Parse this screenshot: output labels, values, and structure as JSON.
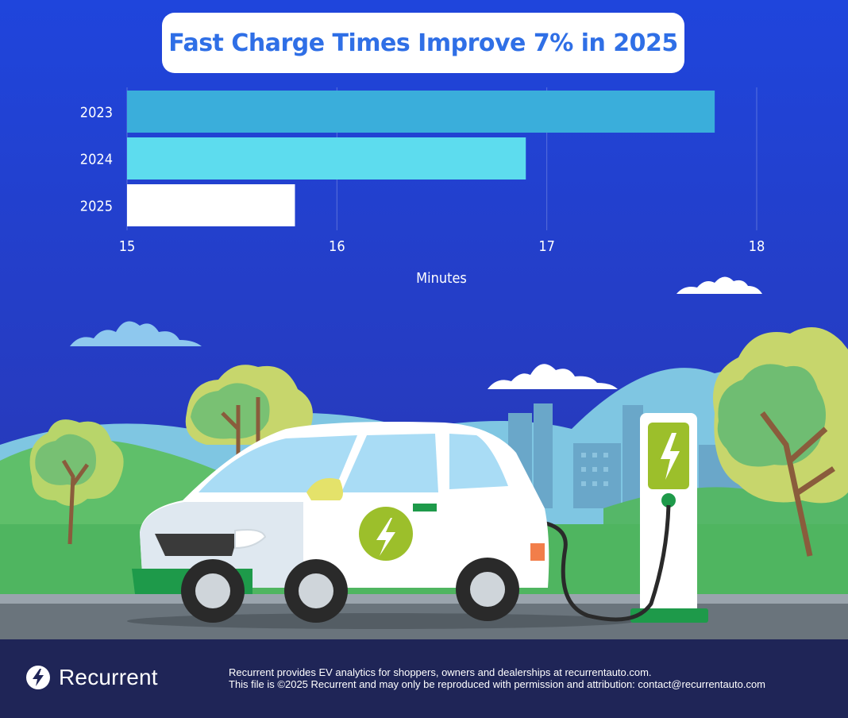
{
  "title": "Fast Charge Times Improve 7% in 2025",
  "chart_data": {
    "type": "bar",
    "orientation": "horizontal",
    "categories": [
      "2023",
      "2024",
      "2025"
    ],
    "values": [
      17.8,
      16.9,
      15.8
    ],
    "xlabel": "Minutes",
    "ylabel": "",
    "xlim": [
      15,
      18
    ],
    "xticks": [
      "15",
      "16",
      "17",
      "18"
    ],
    "grid": "vertical",
    "colors": [
      "#3aaedb",
      "#5ddcee",
      "#ffffff"
    ]
  },
  "footer": {
    "brand": "Recurrent",
    "line1": "Recurrent provides EV analytics for shoppers, owners and dealerships at recurrentauto.com.",
    "line2": "This file is ©2025 Recurrent and may only be reproduced with permission and attribution: contact@recurrentauto.com"
  },
  "colors": {
    "sky_top": "#1f3fd6",
    "sky_bottom": "#2a39b8",
    "title": "#2f6fe6",
    "footer_bg": "#1f2557",
    "accent_green": "#9cbf2b"
  }
}
